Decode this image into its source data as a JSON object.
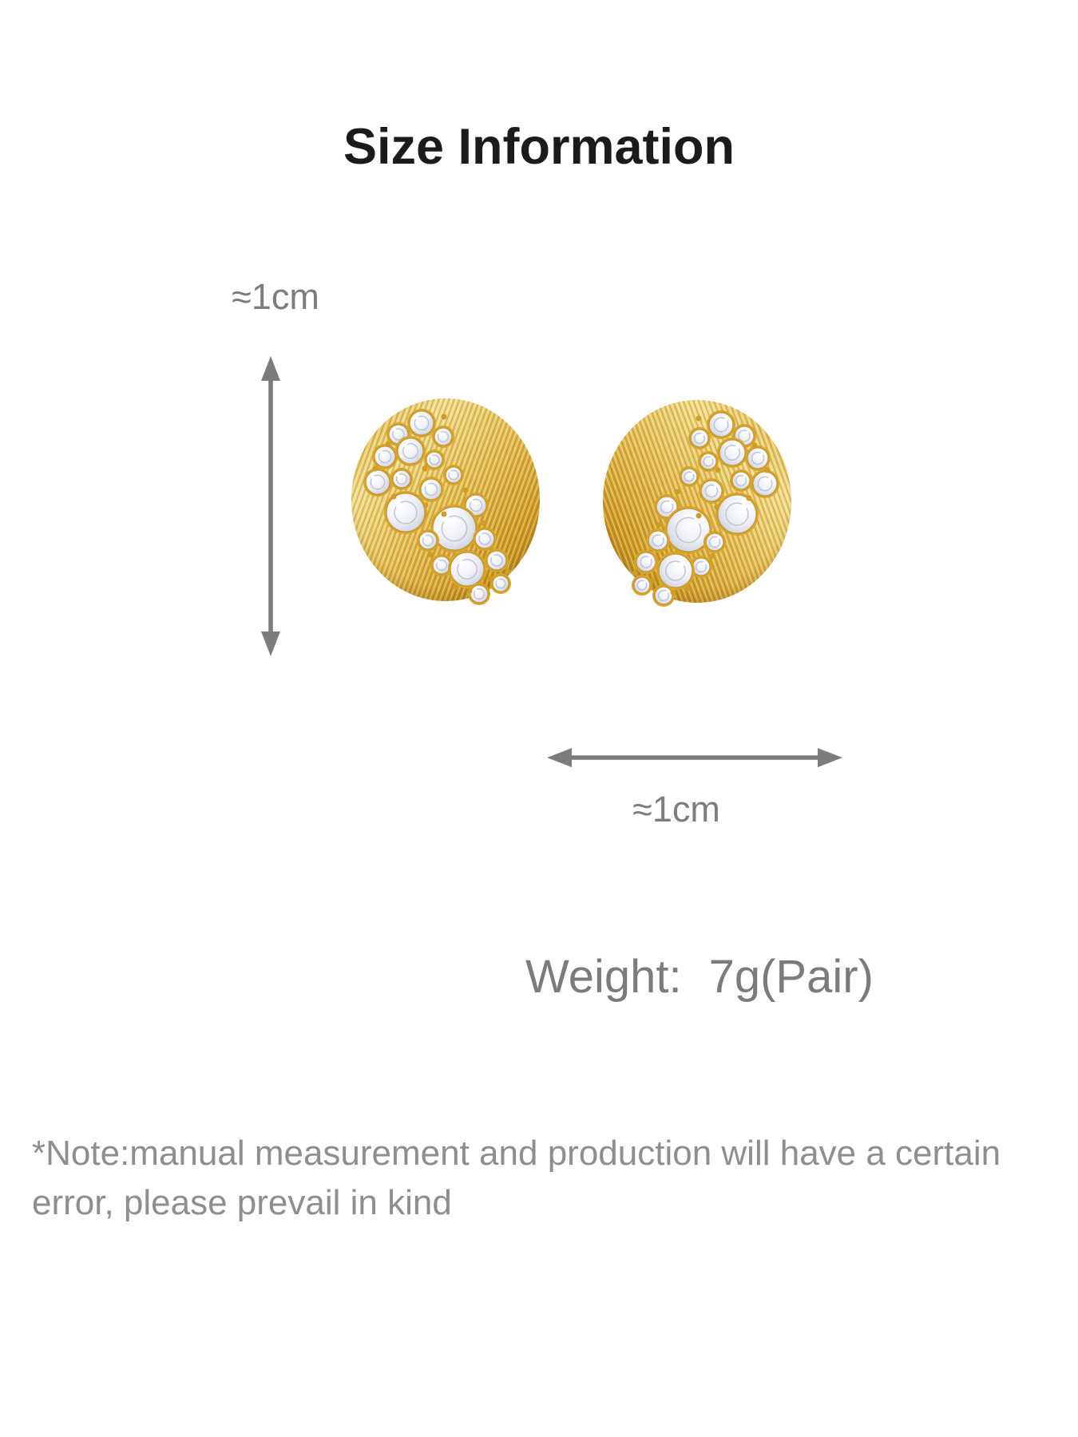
{
  "header": {
    "title": "Size Information"
  },
  "dimensions": {
    "height": {
      "label": "≈1cm"
    },
    "width": {
      "label": "≈1cm"
    }
  },
  "weight": {
    "label": "Weight:",
    "value": "7g(Pair)"
  },
  "note": {
    "line1": "*Note:manual measurement and production will have a certain",
    "line2": "error, please prevail in kind"
  },
  "product_image": {
    "alt": "pair of round gold stud earrings with diagonal band of crystal rhinestones"
  },
  "icons": {
    "height_arrow": "double-headed-vertical-measure-arrow",
    "width_arrow": "double-headed-horizontal-measure-arrow"
  },
  "colors": {
    "background": "#ffffff",
    "title_text": "#1b1b1b",
    "dimension_text": "#7d7d7d",
    "arrow": "#7c7c7c",
    "weight_text": "#7b7b7b",
    "note_text": "#8e8e8e",
    "gold_light": "#f3dd8c",
    "gold_mid": "#e2b44a",
    "gold_dark": "#aa7712",
    "crystal": "#eef0f7"
  }
}
